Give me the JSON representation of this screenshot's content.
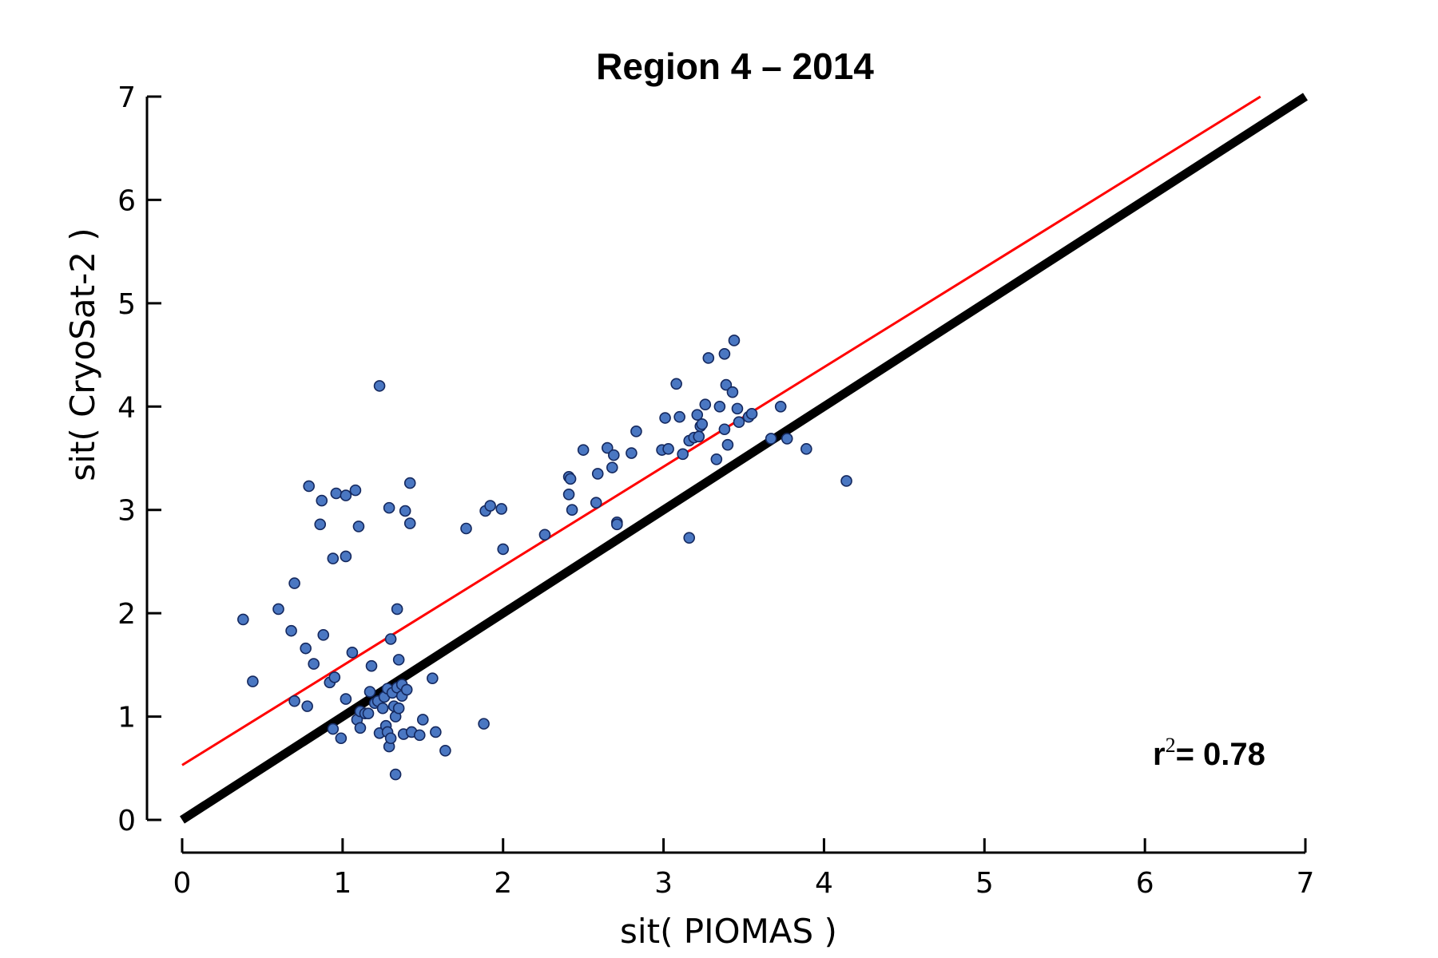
{
  "chart_data": {
    "type": "scatter",
    "title": "Region 4 – 2014",
    "xlabel": "sit( PIOMAS )",
    "ylabel": "sit( CryoSat-2 )",
    "xlim": [
      0,
      7
    ],
    "ylim": [
      0,
      7
    ],
    "x_ticks": [
      "0",
      "1",
      "2",
      "3",
      "4",
      "5",
      "6",
      "7"
    ],
    "y_ticks": [
      "0",
      "1",
      "2",
      "3",
      "4",
      "5",
      "6",
      "7"
    ],
    "grid": false,
    "annotation": {
      "r_label": "r",
      "r_sup": "2",
      "r_value": "= 0.78"
    },
    "colors": {
      "points": "#4a77c2",
      "point_edge": "#14285e",
      "fit_line": "#ff0000",
      "identity_line": "#000000"
    },
    "series": [
      {
        "kind": "points",
        "points": [
          [
            0.38,
            1.94
          ],
          [
            0.44,
            1.34
          ],
          [
            0.6,
            2.04
          ],
          [
            0.68,
            1.83
          ],
          [
            0.7,
            2.29
          ],
          [
            0.7,
            1.15
          ],
          [
            0.77,
            1.66
          ],
          [
            0.78,
            1.1
          ],
          [
            0.79,
            3.23
          ],
          [
            0.82,
            1.51
          ],
          [
            0.86,
            2.86
          ],
          [
            0.87,
            3.09
          ],
          [
            0.88,
            1.79
          ],
          [
            0.92,
            1.33
          ],
          [
            0.94,
            2.53
          ],
          [
            0.94,
            0.88
          ],
          [
            0.95,
            1.38
          ],
          [
            0.96,
            3.16
          ],
          [
            0.99,
            0.79
          ],
          [
            1.02,
            3.14
          ],
          [
            1.02,
            2.55
          ],
          [
            1.02,
            1.17
          ],
          [
            1.06,
            1.62
          ],
          [
            1.08,
            3.19
          ],
          [
            1.09,
            0.97
          ],
          [
            1.1,
            2.84
          ],
          [
            1.11,
            0.89
          ],
          [
            1.11,
            1.05
          ],
          [
            1.14,
            1.03
          ],
          [
            1.16,
            1.03
          ],
          [
            1.17,
            1.24
          ],
          [
            1.18,
            1.49
          ],
          [
            1.2,
            1.13
          ],
          [
            1.22,
            1.15
          ],
          [
            1.23,
            4.2
          ],
          [
            1.23,
            0.84
          ],
          [
            1.25,
            1.08
          ],
          [
            1.26,
            1.19
          ],
          [
            1.27,
            0.91
          ],
          [
            1.28,
            1.27
          ],
          [
            1.28,
            0.85
          ],
          [
            1.29,
            3.02
          ],
          [
            1.29,
            0.71
          ],
          [
            1.3,
            0.79
          ],
          [
            1.3,
            1.75
          ],
          [
            1.31,
            1.23
          ],
          [
            1.32,
            1.1
          ],
          [
            1.33,
            1.0
          ],
          [
            1.33,
            0.44
          ],
          [
            1.34,
            2.04
          ],
          [
            1.34,
            1.28
          ],
          [
            1.35,
            1.08
          ],
          [
            1.35,
            1.55
          ],
          [
            1.37,
            1.2
          ],
          [
            1.37,
            1.31
          ],
          [
            1.38,
            0.83
          ],
          [
            1.39,
            2.99
          ],
          [
            1.4,
            1.26
          ],
          [
            1.42,
            3.26
          ],
          [
            1.42,
            2.87
          ],
          [
            1.43,
            0.85
          ],
          [
            1.48,
            0.82
          ],
          [
            1.5,
            0.97
          ],
          [
            1.56,
            1.37
          ],
          [
            1.58,
            0.85
          ],
          [
            1.64,
            0.67
          ],
          [
            1.77,
            2.82
          ],
          [
            1.88,
            0.93
          ],
          [
            1.89,
            2.99
          ],
          [
            1.92,
            3.04
          ],
          [
            1.99,
            3.01
          ],
          [
            2.0,
            2.62
          ],
          [
            2.26,
            2.76
          ],
          [
            2.41,
            3.15
          ],
          [
            2.41,
            3.32
          ],
          [
            2.42,
            3.3
          ],
          [
            2.43,
            3.0
          ],
          [
            2.5,
            3.58
          ],
          [
            2.58,
            3.07
          ],
          [
            2.59,
            3.35
          ],
          [
            2.65,
            3.6
          ],
          [
            2.68,
            3.41
          ],
          [
            2.69,
            3.53
          ],
          [
            2.71,
            2.88
          ],
          [
            2.71,
            2.86
          ],
          [
            2.8,
            3.55
          ],
          [
            2.83,
            3.76
          ],
          [
            2.99,
            3.58
          ],
          [
            3.01,
            3.89
          ],
          [
            3.03,
            3.59
          ],
          [
            3.08,
            4.22
          ],
          [
            3.1,
            3.9
          ],
          [
            3.12,
            3.54
          ],
          [
            3.16,
            3.67
          ],
          [
            3.16,
            2.73
          ],
          [
            3.19,
            3.7
          ],
          [
            3.21,
            3.92
          ],
          [
            3.22,
            3.71
          ],
          [
            3.23,
            3.81
          ],
          [
            3.24,
            3.83
          ],
          [
            3.26,
            4.02
          ],
          [
            3.28,
            4.47
          ],
          [
            3.33,
            3.49
          ],
          [
            3.35,
            4.0
          ],
          [
            3.38,
            3.78
          ],
          [
            3.38,
            4.51
          ],
          [
            3.39,
            4.21
          ],
          [
            3.4,
            3.63
          ],
          [
            3.43,
            4.14
          ],
          [
            3.44,
            4.64
          ],
          [
            3.46,
            3.98
          ],
          [
            3.47,
            3.85
          ],
          [
            3.53,
            3.9
          ],
          [
            3.55,
            3.93
          ],
          [
            3.67,
            3.69
          ],
          [
            3.73,
            4.0
          ],
          [
            3.77,
            3.69
          ],
          [
            3.89,
            3.59
          ],
          [
            4.14,
            3.28
          ]
        ]
      },
      {
        "kind": "fit_line",
        "x": [
          0,
          6.72
        ],
        "y": [
          0.53,
          7.0
        ]
      },
      {
        "kind": "identity_line",
        "x": [
          0,
          7
        ],
        "y": [
          0,
          7
        ]
      }
    ]
  }
}
